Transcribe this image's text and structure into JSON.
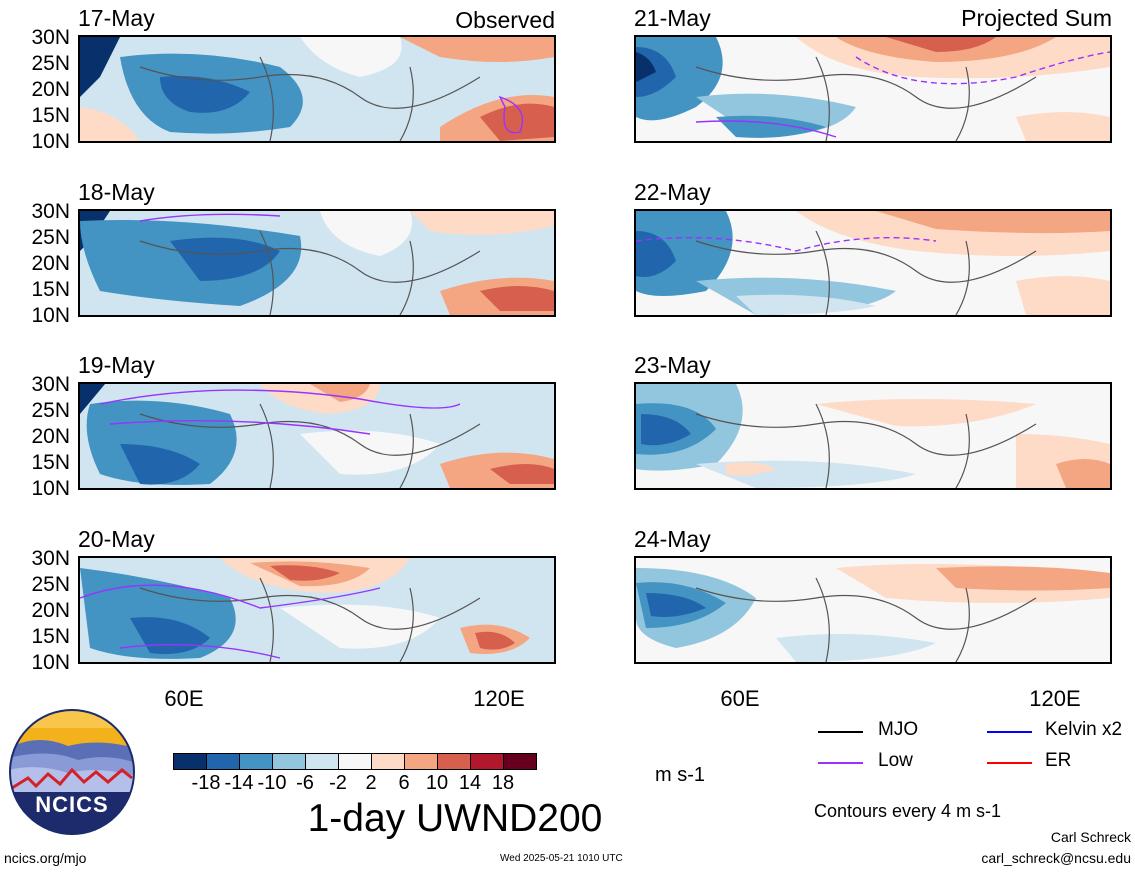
{
  "panels": [
    {
      "date": "17-May",
      "tag": "Observed"
    },
    {
      "date": "18-May",
      "tag": ""
    },
    {
      "date": "19-May",
      "tag": ""
    },
    {
      "date": "20-May",
      "tag": ""
    },
    {
      "date": "21-May",
      "tag": "Projected Sum"
    },
    {
      "date": "22-May",
      "tag": ""
    },
    {
      "date": "23-May",
      "tag": ""
    },
    {
      "date": "24-May",
      "tag": ""
    }
  ],
  "lat_labels": [
    "30N",
    "25N",
    "20N",
    "15N",
    "10N"
  ],
  "lon_labels": [
    "60E",
    "120E"
  ],
  "colorbar": {
    "colors": [
      "#08306b",
      "#2166ac",
      "#4393c3",
      "#92c5de",
      "#d1e5f0",
      "#f7f7f7",
      "#fddbc7",
      "#f4a582",
      "#d6604d",
      "#b2182b",
      "#67001f"
    ],
    "ticks": [
      "-18",
      "-14",
      "-10",
      "-6",
      "-2",
      "2",
      "6",
      "10",
      "14",
      "18"
    ],
    "unit": "m s-1"
  },
  "title": "1-day UWND200",
  "legend": [
    {
      "label": "MJO",
      "color": "#000000"
    },
    {
      "label": "Kelvin x2",
      "color": "#0000ff"
    },
    {
      "label": "Low",
      "color": "#9933ff"
    },
    {
      "label": "ER",
      "color": "#ff0000"
    }
  ],
  "contour_note": "Contours every 4 m s-1",
  "footer": {
    "site": "ncics.org/mjo",
    "timestamp": "Wed 2025-05-21 1010 UTC",
    "author": "Carl Schreck",
    "email": "carl_schreck@ncsu.edu"
  },
  "logo_text": "NCICS"
}
